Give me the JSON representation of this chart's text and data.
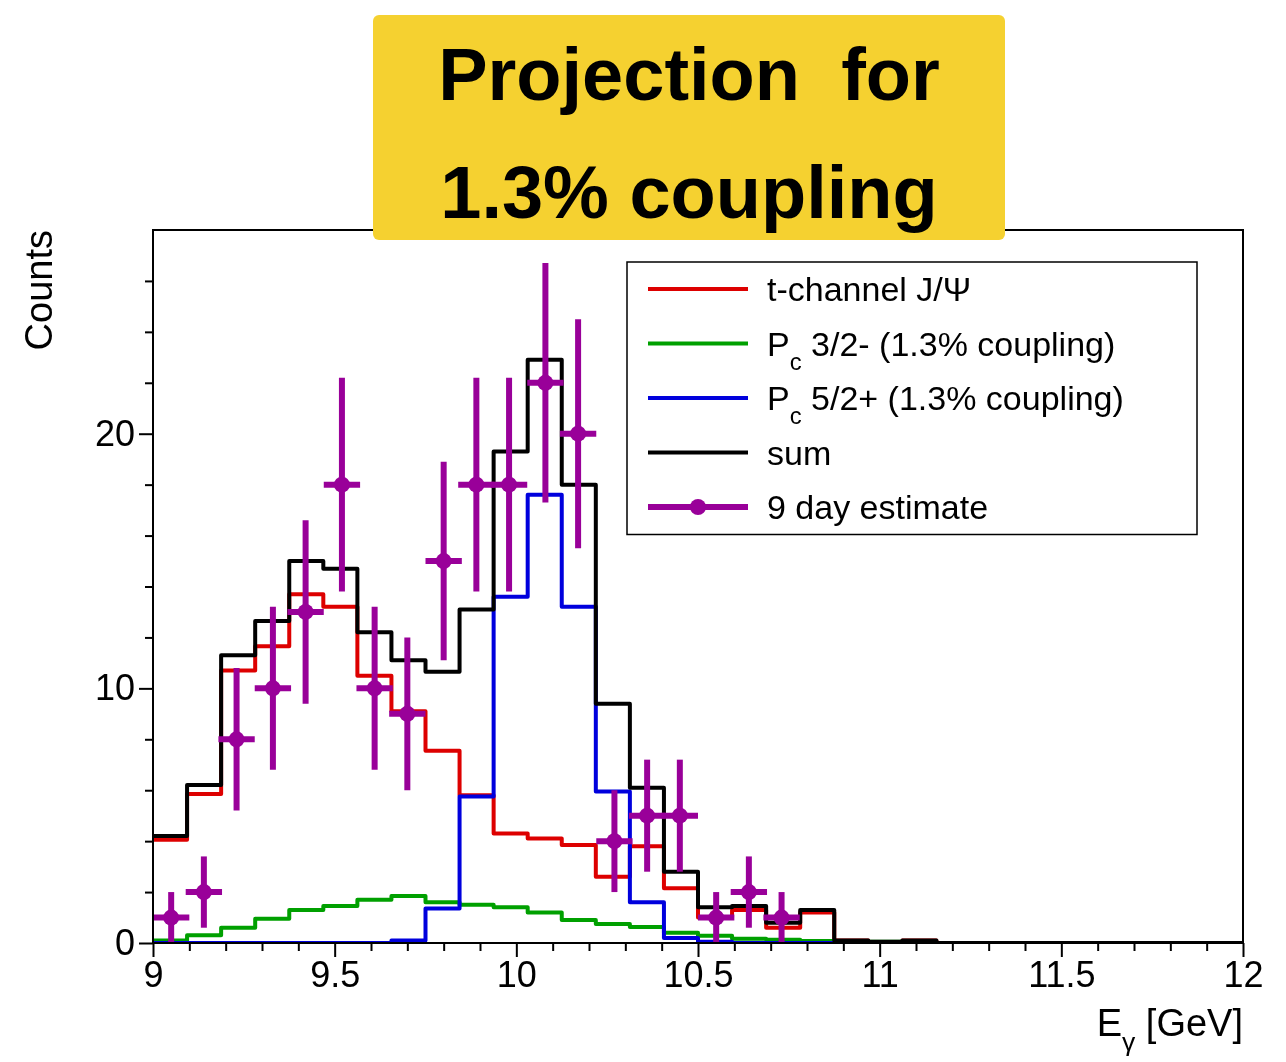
{
  "chart_data": {
    "type": "histogram",
    "title": "Projection  for 1.3% coupling",
    "xlabel": "E$_{γ}$ [GeV]",
    "ylabel": "Counts",
    "bins": [
      9,
      9.09375,
      9.1875,
      9.28125,
      9.375,
      9.46875,
      9.5625,
      9.65625,
      9.75,
      9.84375,
      9.9375,
      10.03125,
      10.125,
      10.21875,
      10.3125,
      10.40625,
      10.5,
      10.59375,
      10.6875,
      10.78125,
      10.875,
      10.96875,
      11.0625,
      11.15625,
      11.25,
      11.34375,
      11.4375,
      11.53125,
      11.625,
      11.71875,
      11.8125,
      11.90625,
      12
    ],
    "series": [
      {
        "name": "t-channel J/Ψ",
        "color": "#dd0000",
        "values": [
          4.05,
          5.85,
          10.7,
          11.65,
          13.7,
          13.2,
          10.5,
          9.1,
          7.55,
          5.8,
          4.3,
          4.1,
          3.85,
          2.6,
          3.8,
          2.15,
          1.0,
          1.3,
          0.6,
          1.2,
          0.1,
          0,
          0.1,
          0,
          0,
          0,
          0,
          0,
          0,
          0,
          0,
          0
        ]
      },
      {
        "name": "P$_{c}$ 3/2- (1.3% coupling)",
        "color": "#00a000",
        "values": [
          0.1,
          0.3,
          0.6,
          0.95,
          1.3,
          1.45,
          1.7,
          1.85,
          1.6,
          1.5,
          1.4,
          1.2,
          0.9,
          0.75,
          0.63,
          0.4,
          0.28,
          0.17,
          0.13,
          0.08,
          0.05,
          0.05,
          0,
          0,
          0,
          0,
          0,
          0,
          0,
          0,
          0,
          0
        ]
      },
      {
        "name": "P$_{c}$ 5/2+ (1.3% coupling)",
        "color": "#0000dd",
        "values": [
          0,
          0,
          0,
          0,
          0,
          0,
          0,
          0.1,
          1.35,
          5.75,
          13.6,
          17.6,
          13.2,
          5.95,
          1.6,
          0.2,
          0.05,
          0,
          0,
          0,
          0,
          0,
          0,
          0,
          0,
          0,
          0,
          0,
          0,
          0,
          0,
          0
        ]
      },
      {
        "name": "sum",
        "color": "#000000",
        "values": [
          4.2,
          6.2,
          11.3,
          12.65,
          15.0,
          14.7,
          12.2,
          11.1,
          10.65,
          13.1,
          19.3,
          22.9,
          18.0,
          9.4,
          6.1,
          2.8,
          1.4,
          1.45,
          0.8,
          1.3,
          0.1,
          0.05,
          0.1,
          0,
          0,
          0,
          0,
          0,
          0,
          0,
          0,
          0
        ]
      },
      {
        "name": "9 day estimate",
        "type": "scatter",
        "color": "#990099",
        "marker": "circle",
        "x": [
          9.05,
          9.14,
          9.23,
          9.33,
          9.42,
          9.52,
          9.61,
          9.7,
          9.8,
          9.89,
          9.98,
          10.08,
          10.17,
          10.27,
          10.36,
          10.45,
          10.55,
          10.64,
          10.73
        ],
        "values": [
          1,
          2,
          8,
          10,
          13,
          18,
          10,
          9,
          15,
          18,
          18,
          22,
          20,
          4,
          5,
          5,
          1,
          2,
          1
        ],
        "errors": [
          1,
          1.4,
          2.8,
          3.2,
          3.6,
          4.2,
          3.2,
          3,
          3.9,
          4.2,
          4.2,
          4.7,
          4.5,
          2,
          2.2,
          2.2,
          1,
          1.4,
          1
        ],
        "xerrors": [
          0.05,
          0.05,
          0.05,
          0.05,
          0.05,
          0.05,
          0.05,
          0.05,
          0.05,
          0.05,
          0.05,
          0.05,
          0.05,
          0.05,
          0.05,
          0.05,
          0.05,
          0.05,
          0.05
        ]
      }
    ],
    "xlim": [
      9,
      12
    ],
    "ylim": [
      0,
      28
    ],
    "xticks": [
      9,
      {
        "value": 9.1,
        "label": null
      },
      {
        "value": 9.2,
        "label": null
      },
      {
        "value": 9.3,
        "label": null
      },
      {
        "value": 9.4,
        "label": null
      },
      9.5,
      {
        "value": 9.6,
        "label": null
      },
      {
        "value": 9.7,
        "label": null
      },
      {
        "value": 9.8,
        "label": null
      },
      {
        "value": 9.9,
        "label": null
      },
      10,
      {
        "value": 10.1,
        "label": null
      },
      {
        "value": 10.2,
        "label": null
      },
      {
        "value": 10.3,
        "label": null
      },
      {
        "value": 10.4,
        "label": null
      },
      10.5,
      {
        "value": 10.6,
        "label": null
      },
      {
        "value": 10.7,
        "label": null
      },
      {
        "value": 10.8,
        "label": null
      },
      {
        "value": 10.9,
        "label": null
      },
      11,
      {
        "value": 11.1,
        "label": null
      },
      {
        "value": 11.2,
        "label": null
      },
      {
        "value": 11.3,
        "label": null
      },
      {
        "value": 11.4,
        "label": null
      },
      11.5,
      {
        "value": 11.6,
        "label": null
      },
      {
        "value": 11.7,
        "label": null
      },
      {
        "value": 11.8,
        "label": null
      },
      {
        "value": 11.9,
        "label": null
      },
      12
    ],
    "yticks": [
      0,
      {
        "value": 2,
        "label": null
      },
      {
        "value": 4,
        "label": null
      },
      {
        "value": 6,
        "label": null
      },
      {
        "value": 8,
        "label": null
      },
      10,
      {
        "value": 12,
        "label": null
      },
      {
        "value": 14,
        "label": null
      },
      {
        "value": 16,
        "label": null
      },
      {
        "value": 18,
        "label": null
      },
      20,
      {
        "value": 22,
        "label": null
      },
      {
        "value": 24,
        "label": null
      },
      {
        "value": 26,
        "label": null
      }
    ],
    "legend": "top right",
    "grid": false
  }
}
